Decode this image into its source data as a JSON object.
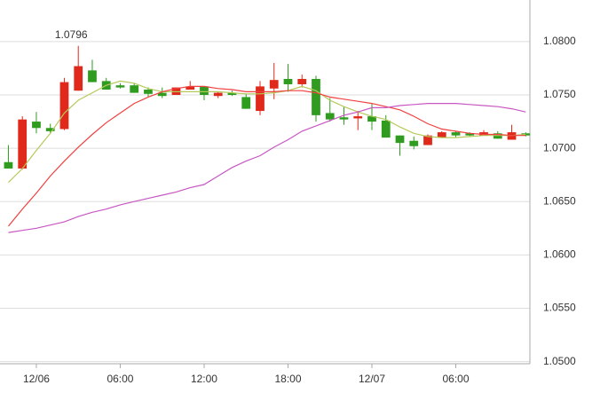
{
  "chart_data": {
    "type": "candlestick",
    "x": [
      -2,
      -1,
      0,
      1,
      2,
      3,
      4,
      5,
      6,
      7,
      8,
      9,
      10,
      11,
      12,
      13,
      14,
      15,
      16,
      17,
      18,
      19,
      20,
      21,
      22,
      23,
      24,
      25,
      26,
      27,
      28,
      29,
      30,
      31,
      32,
      33,
      34,
      35
    ],
    "open": [
      1.0687,
      1.0681,
      1.0725,
      1.0719,
      1.0718,
      1.0754,
      1.0773,
      1.0763,
      1.0759,
      1.0759,
      1.0755,
      1.0752,
      1.075,
      1.0755,
      1.0758,
      1.0749,
      1.0752,
      1.0748,
      1.0735,
      1.0756,
      1.0765,
      1.076,
      1.0765,
      1.0733,
      1.0729,
      1.0728,
      1.073,
      1.0726,
      1.0712,
      1.0707,
      1.0703,
      1.071,
      1.0715,
      1.0714,
      1.0712,
      1.0714,
      1.0708,
      1.0714
    ],
    "high": [
      1.0703,
      1.073,
      1.0734,
      1.0723,
      1.0766,
      1.0796,
      1.0783,
      1.0766,
      1.0761,
      1.0761,
      1.0757,
      1.0757,
      1.0757,
      1.0763,
      1.0758,
      1.0753,
      1.0754,
      1.0751,
      1.0763,
      1.078,
      1.0779,
      1.0769,
      1.0768,
      1.0747,
      1.0739,
      1.0735,
      1.0742,
      1.0731,
      1.0712,
      1.0711,
      1.0713,
      1.0716,
      1.0716,
      1.0715,
      1.0717,
      1.0716,
      1.0722,
      1.0715
    ],
    "low": [
      1.0681,
      1.068,
      1.0714,
      1.0714,
      1.0717,
      1.0754,
      1.0762,
      1.0755,
      1.0756,
      1.0752,
      1.0748,
      1.0747,
      1.075,
      1.0755,
      1.0745,
      1.0747,
      1.0749,
      1.0737,
      1.0731,
      1.0746,
      1.0753,
      1.0757,
      1.0725,
      1.0725,
      1.0722,
      1.0717,
      1.0717,
      1.071,
      1.0693,
      1.0699,
      1.0703,
      1.071,
      1.071,
      1.0711,
      1.0712,
      1.0709,
      1.0708,
      1.0711
    ],
    "close": [
      1.0681,
      1.0727,
      1.0719,
      1.0716,
      1.0762,
      1.0777,
      1.0762,
      1.0755,
      1.0757,
      1.0752,
      1.0751,
      1.0749,
      1.0757,
      1.0758,
      1.075,
      1.0752,
      1.075,
      1.0737,
      1.0758,
      1.0764,
      1.076,
      1.0765,
      1.0731,
      1.0727,
      1.0727,
      1.073,
      1.0725,
      1.071,
      1.0705,
      1.0702,
      1.0712,
      1.0715,
      1.0712,
      1.0712,
      1.0715,
      1.0709,
      1.0715,
      1.0712
    ],
    "up_color": "#e0291b",
    "down_color": "#2f9c1f",
    "lines": [
      {
        "color": "#b5c95a",
        "values": [
          1.0668,
          1.0681,
          1.0698,
          1.0714,
          1.0733,
          1.0745,
          1.0752,
          1.0759,
          1.0763,
          1.0761,
          1.0756,
          1.0753,
          1.0753,
          1.0753,
          1.0753,
          1.0753,
          1.0752,
          1.0751,
          1.0751,
          1.0752,
          1.0754,
          1.0758,
          1.0754,
          1.0745,
          1.0739,
          1.0734,
          1.073,
          1.0727,
          1.072,
          1.0714,
          1.0711,
          1.071,
          1.071,
          1.0711,
          1.0712,
          1.0712,
          1.0712,
          1.0713
        ]
      },
      {
        "color": "#f04040",
        "values": [
          1.0627,
          1.0643,
          1.0658,
          1.0674,
          1.0688,
          1.0701,
          1.0713,
          1.0724,
          1.0733,
          1.0742,
          1.0748,
          1.0753,
          1.0756,
          1.0758,
          1.0758,
          1.0756,
          1.0755,
          1.0753,
          1.0753,
          1.0753,
          1.0754,
          1.0754,
          1.0752,
          1.0748,
          1.0746,
          1.0744,
          1.0742,
          1.0739,
          1.0736,
          1.073,
          1.0723,
          1.0718,
          1.0716,
          1.0714,
          1.0713,
          1.0713,
          1.0712,
          1.0712
        ]
      },
      {
        "color": "#c857c2",
        "values": [
          1.0621,
          1.0623,
          1.0625,
          1.0628,
          1.0631,
          1.0636,
          1.064,
          1.0643,
          1.0647,
          1.065,
          1.0653,
          1.0656,
          1.0659,
          1.0663,
          1.0666,
          1.0674,
          1.0682,
          1.0688,
          1.0693,
          1.0701,
          1.0708,
          1.0716,
          1.0721,
          1.0726,
          1.0731,
          1.0734,
          1.0738,
          1.0738,
          1.074,
          1.0741,
          1.0742,
          1.0742,
          1.0742,
          1.0741,
          1.074,
          1.0739,
          1.0737,
          1.0734
        ]
      }
    ],
    "xlim": [
      -2.6,
      35.3
    ],
    "xticks": [
      {
        "value": 0,
        "label": "12/06"
      },
      {
        "value": 6,
        "label": "06:00"
      },
      {
        "value": 12,
        "label": "12:00"
      },
      {
        "value": 18,
        "label": "18:00"
      },
      {
        "value": 24,
        "label": "12/07"
      },
      {
        "value": 30,
        "label": "06:00"
      }
    ],
    "ylim": [
      1.0498,
      1.0839
    ],
    "yticks": [
      {
        "value": 1.05,
        "label": "1.0500"
      },
      {
        "value": 1.055,
        "label": "1.0550"
      },
      {
        "value": 1.06,
        "label": "1.0600"
      },
      {
        "value": 1.065,
        "label": "1.0650"
      },
      {
        "value": 1.07,
        "label": "1.0700"
      },
      {
        "value": 1.075,
        "label": "1.0750"
      },
      {
        "value": 1.08,
        "label": "1.0800"
      }
    ],
    "grid": true
  }
}
